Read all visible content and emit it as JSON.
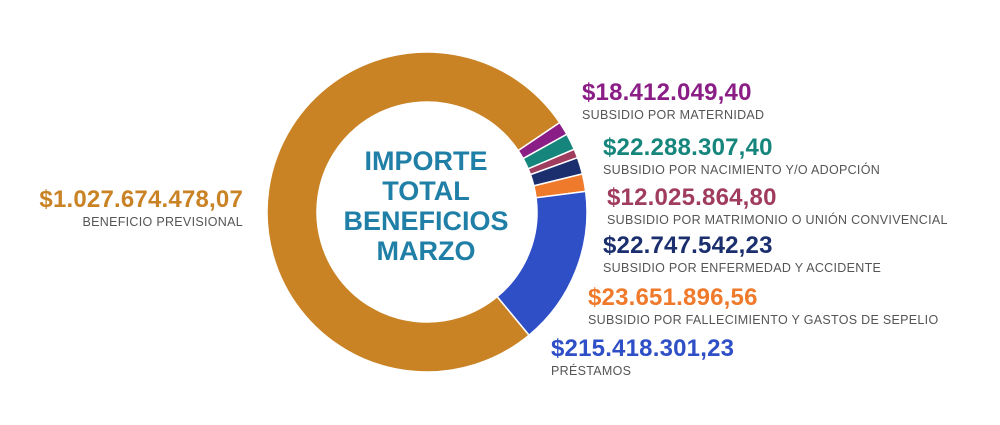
{
  "chart_data": {
    "type": "pie",
    "title": "IMPORTE TOTAL BENEFICIOS MARZO",
    "title_lines": [
      "IMPORTE",
      "TOTAL",
      "BENEFICIOS",
      "MARZO"
    ],
    "currency": "$",
    "slices": [
      {
        "label": "SUBSIDIO POR MATERNIDAD",
        "value": 18412049.4,
        "display": "$18.412.049,40",
        "color": "#8a1e86"
      },
      {
        "label": "SUBSIDIO POR NACIMIENTO Y/O ADOPCIÓN",
        "value": 22288307.4,
        "display": "$22.288.307,40",
        "color": "#16857c"
      },
      {
        "label": "SUBSIDIO POR MATRIMONIO O UNIÓN CONVIVENCIAL",
        "value": 12025864.8,
        "display": "$12.025.864,80",
        "color": "#a03c5e"
      },
      {
        "label": "SUBSIDIO POR ENFERMEDAD Y ACCIDENTE",
        "value": 22747542.23,
        "display": "$22.747.542,23",
        "color": "#1b2f6e"
      },
      {
        "label": "SUBSIDIO POR FALLECIMIENTO Y GASTOS DE SEPELIO",
        "value": 23651896.56,
        "display": "$23.651.896,56",
        "color": "#f07a2b"
      },
      {
        "label": "PRÉSTAMOS",
        "value": 215418301.23,
        "display": "$215.418.301,23",
        "color": "#2f4fc7"
      },
      {
        "label": "BENEFICIO PREVISIONAL",
        "value": 1027674478.07,
        "display": "$1.027.674.478,07",
        "color": "#c98325"
      }
    ],
    "legend": "none",
    "chart_style": "donut"
  }
}
